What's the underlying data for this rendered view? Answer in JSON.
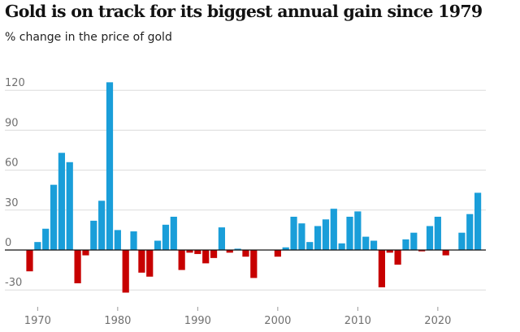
{
  "title": "Gold is on track for its biggest annual gain since 1979",
  "subtitle": "% change in the price of gold",
  "colors": {
    "positive": "#1a9ed9",
    "negative": "#c70000",
    "grid": "#dcdcdc",
    "zero": "#121212",
    "tick": "#707070"
  },
  "chart_data": {
    "type": "bar",
    "title": "Gold is on track for its biggest annual gain since 1979",
    "subtitle": "% change in the price of gold",
    "xlabel": "",
    "ylabel": "",
    "ylim": [
      -40,
      130
    ],
    "yticks": [
      -30,
      0,
      30,
      60,
      90,
      120
    ],
    "xticks": [
      1970,
      1980,
      1990,
      2000,
      2010,
      2020
    ],
    "grid": true,
    "x": [
      1969,
      1970,
      1971,
      1972,
      1973,
      1974,
      1975,
      1976,
      1977,
      1978,
      1979,
      1980,
      1981,
      1982,
      1983,
      1984,
      1985,
      1986,
      1987,
      1988,
      1989,
      1990,
      1991,
      1992,
      1993,
      1994,
      1995,
      1996,
      1997,
      1998,
      1999,
      2000,
      2001,
      2002,
      2003,
      2004,
      2005,
      2006,
      2007,
      2008,
      2009,
      2010,
      2011,
      2012,
      2013,
      2014,
      2015,
      2016,
      2017,
      2018,
      2019,
      2020,
      2021,
      2022,
      2023,
      2024,
      2025
    ],
    "values": [
      -16,
      6,
      16,
      49,
      73,
      66,
      -25,
      -4,
      22,
      37,
      126,
      15,
      -32,
      14,
      -17,
      -20,
      7,
      19,
      25,
      -15,
      -2,
      -3,
      -10,
      -6,
      17,
      -2,
      1,
      -5,
      -21,
      0,
      0,
      -5,
      2,
      25,
      20,
      6,
      18,
      23,
      31,
      5,
      25,
      29,
      10,
      7,
      -28,
      -2,
      -11,
      8,
      13,
      -1,
      18,
      25,
      -4,
      0,
      13,
      27,
      43
    ]
  }
}
